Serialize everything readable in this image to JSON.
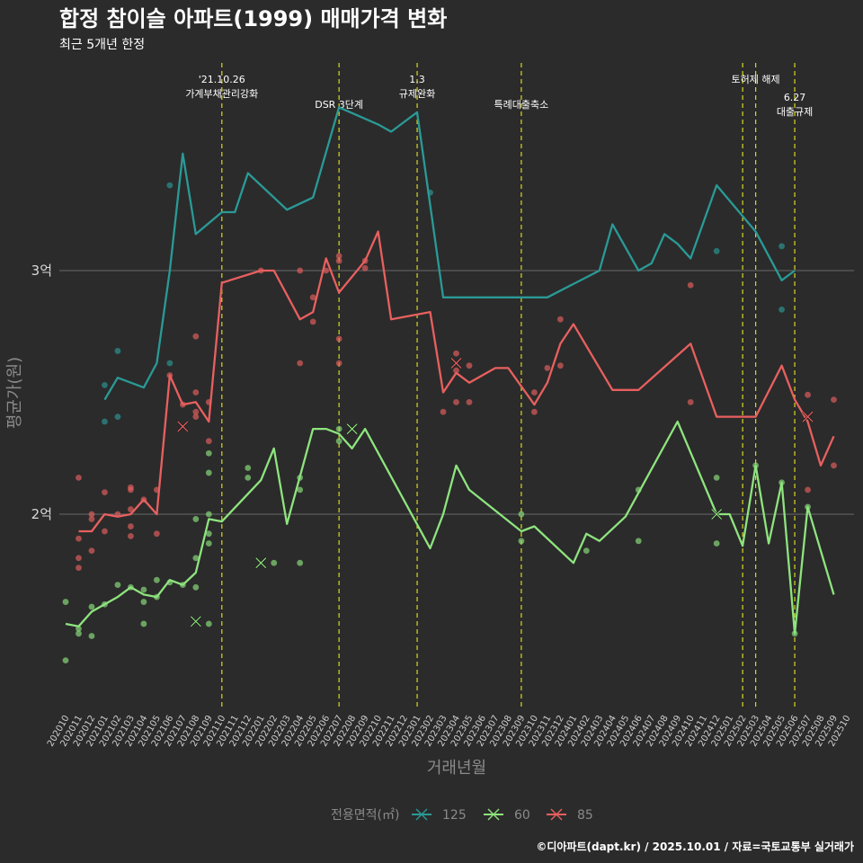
{
  "chart_data": {
    "type": "line",
    "title": "합정 참이슬 아파트(1999) 매매가격 변화",
    "subtitle": "최근 5개년 한정",
    "xlabel": "거래년월",
    "ylabel": "평균가(원)",
    "caption": "©디아파트(dapt.kr) / 2025.10.01 / 자료=국토교통부 실거래가",
    "legend_title": "전용면적(㎡)",
    "legend_position": "bottom",
    "y_ticks": [
      {
        "value": 20000,
        "label": "2억"
      },
      {
        "value": 30000,
        "label": "3억"
      }
    ],
    "ylim": [
      12000,
      38000
    ],
    "categories": [
      "202010",
      "202011",
      "202012",
      "202101",
      "202102",
      "202103",
      "202104",
      "202105",
      "202106",
      "202107",
      "202108",
      "202109",
      "202110",
      "202111",
      "202112",
      "202201",
      "202202",
      "202203",
      "202204",
      "202205",
      "202206",
      "202207",
      "202208",
      "202209",
      "202210",
      "202211",
      "202212",
      "202301",
      "202302",
      "202303",
      "202304",
      "202305",
      "202306",
      "202307",
      "202308",
      "202309",
      "202310",
      "202311",
      "202312",
      "202401",
      "202402",
      "202403",
      "202404",
      "202405",
      "202406",
      "202407",
      "202408",
      "202409",
      "202410",
      "202411",
      "202412",
      "202501",
      "202502",
      "202503",
      "202504",
      "202505",
      "202506",
      "202507",
      "202508",
      "202509",
      "202510"
    ],
    "events": [
      {
        "month": "202110",
        "lines": [
          "'21.10.26",
          "가계부채관리강화"
        ],
        "level": 1
      },
      {
        "month": "202207",
        "lines": [
          "DSR 3단계"
        ],
        "level": 2
      },
      {
        "month": "202301",
        "lines": [
          "1.3",
          "규제완화"
        ],
        "level": 1
      },
      {
        "month": "202309",
        "lines": [
          "특례대출축소"
        ],
        "level": 2
      },
      {
        "month": "202502",
        "lines": [],
        "level": 0
      },
      {
        "month": "202503",
        "lines": [
          "토허제 해제"
        ],
        "level": 1
      },
      {
        "month": "202506",
        "lines": [
          "6.27",
          "대출규제"
        ],
        "level": 3
      }
    ],
    "series": [
      {
        "name": "125",
        "color": "#2a9a96",
        "line": [
          [
            "202101",
            24700
          ],
          [
            "202102",
            25600
          ],
          [
            "202104",
            25200
          ],
          [
            "202105",
            26200
          ],
          [
            "202106",
            30000
          ],
          [
            "202107",
            34800
          ],
          [
            "202108",
            31500
          ],
          [
            "202110",
            32400
          ],
          [
            "202111",
            32400
          ],
          [
            "202112",
            34000
          ],
          [
            "202203",
            32500
          ],
          [
            "202205",
            33000
          ],
          [
            "202207",
            36700
          ],
          [
            "202210",
            36000
          ],
          [
            "202211",
            35700
          ],
          [
            "202301",
            36500
          ],
          [
            "202303",
            28900
          ],
          [
            "202311",
            28900
          ],
          [
            "202403",
            30000
          ],
          [
            "202404",
            31900
          ],
          [
            "202406",
            30000
          ],
          [
            "202407",
            30300
          ],
          [
            "202408",
            31500
          ],
          [
            "202409",
            31100
          ],
          [
            "202410",
            30500
          ],
          [
            "202412",
            33500
          ],
          [
            "202503",
            31600
          ],
          [
            "202505",
            29600
          ],
          [
            "202506",
            30000
          ]
        ],
        "points": [
          [
            "202101",
            25300
          ],
          [
            "202101",
            23800
          ],
          [
            "202102",
            26700
          ],
          [
            "202102",
            24000
          ],
          [
            "202106",
            33500
          ],
          [
            "202106",
            26200
          ],
          [
            "202412",
            30800
          ],
          [
            "202505",
            31000
          ],
          [
            "202505",
            28400
          ],
          [
            "202302",
            33200
          ]
        ],
        "crosses": []
      },
      {
        "name": "60",
        "color": "#8ee47e",
        "line": [
          [
            "202010",
            15500
          ],
          [
            "202011",
            15400
          ],
          [
            "202012",
            16000
          ],
          [
            "202102",
            16600
          ],
          [
            "202103",
            17000
          ],
          [
            "202104",
            16700
          ],
          [
            "202105",
            16600
          ],
          [
            "202106",
            17300
          ],
          [
            "202107",
            17100
          ],
          [
            "202108",
            17600
          ],
          [
            "202109",
            19800
          ],
          [
            "202110",
            19700
          ],
          [
            "202201",
            21400
          ],
          [
            "202202",
            22700
          ],
          [
            "202203",
            19600
          ],
          [
            "202205",
            23500
          ],
          [
            "202206",
            23500
          ],
          [
            "202207",
            23300
          ],
          [
            "202208",
            22700
          ],
          [
            "202209",
            23500
          ],
          [
            "202302",
            18600
          ],
          [
            "202303",
            20000
          ],
          [
            "202304",
            22000
          ],
          [
            "202305",
            21000
          ],
          [
            "202309",
            19300
          ],
          [
            "202310",
            19500
          ],
          [
            "202401",
            18000
          ],
          [
            "202402",
            19200
          ],
          [
            "202403",
            18900
          ],
          [
            "202405",
            19900
          ],
          [
            "202409",
            23800
          ],
          [
            "202412",
            20000
          ],
          [
            "202501",
            20000
          ],
          [
            "202502",
            18700
          ],
          [
            "202503",
            22000
          ],
          [
            "202504",
            18800
          ],
          [
            "202505",
            21300
          ],
          [
            "202506",
            15100
          ],
          [
            "202507",
            20300
          ],
          [
            "202509",
            16700
          ]
        ],
        "points": [
          [
            "202010",
            14000
          ],
          [
            "202010",
            16400
          ],
          [
            "202011",
            15100
          ],
          [
            "202011",
            15300
          ],
          [
            "202012",
            16200
          ],
          [
            "202012",
            15000
          ],
          [
            "202101",
            16300
          ],
          [
            "202102",
            17100
          ],
          [
            "202103",
            17000
          ],
          [
            "202104",
            16400
          ],
          [
            "202104",
            16900
          ],
          [
            "202104",
            15500
          ],
          [
            "202105",
            16600
          ],
          [
            "202105",
            17300
          ],
          [
            "202106",
            17200
          ],
          [
            "202107",
            17100
          ],
          [
            "202108",
            17000
          ],
          [
            "202108",
            18200
          ],
          [
            "202108",
            19800
          ],
          [
            "202109",
            15500
          ],
          [
            "202109",
            19200
          ],
          [
            "202109",
            20000
          ],
          [
            "202109",
            21700
          ],
          [
            "202109",
            22500
          ],
          [
            "202109",
            18800
          ],
          [
            "202112",
            21900
          ],
          [
            "202112",
            21500
          ],
          [
            "202202",
            18000
          ],
          [
            "202204",
            21000
          ],
          [
            "202204",
            21500
          ],
          [
            "202204",
            18000
          ],
          [
            "202207",
            23000
          ],
          [
            "202207",
            23500
          ],
          [
            "202309",
            20000
          ],
          [
            "202309",
            18900
          ],
          [
            "202402",
            18500
          ],
          [
            "202406",
            21000
          ],
          [
            "202406",
            18900
          ],
          [
            "202412",
            21500
          ],
          [
            "202412",
            18800
          ],
          [
            "202503",
            22000
          ],
          [
            "202505",
            21300
          ],
          [
            "202506",
            15100
          ],
          [
            "202507",
            20300
          ]
        ],
        "crosses": [
          [
            "202108",
            15600
          ],
          [
            "202201",
            18000
          ],
          [
            "202208",
            23500
          ],
          [
            "202412",
            20000
          ]
        ]
      },
      {
        "name": "85",
        "color": "#e8605f",
        "line": [
          [
            "202011",
            19300
          ],
          [
            "202012",
            19300
          ],
          [
            "202101",
            20000
          ],
          [
            "202102",
            19900
          ],
          [
            "202103",
            20000
          ],
          [
            "202104",
            20600
          ],
          [
            "202105",
            20000
          ],
          [
            "202106",
            25700
          ],
          [
            "202107",
            24500
          ],
          [
            "202108",
            24600
          ],
          [
            "202109",
            23800
          ],
          [
            "202110",
            29500
          ],
          [
            "202201",
            30000
          ],
          [
            "202202",
            30000
          ],
          [
            "202204",
            28000
          ],
          [
            "202205",
            28300
          ],
          [
            "202206",
            30500
          ],
          [
            "202207",
            29100
          ],
          [
            "202209",
            30400
          ],
          [
            "202210",
            31600
          ],
          [
            "202211",
            28000
          ],
          [
            "202302",
            28300
          ],
          [
            "202303",
            25000
          ],
          [
            "202304",
            25800
          ],
          [
            "202305",
            25400
          ],
          [
            "202307",
            26000
          ],
          [
            "202308",
            26000
          ],
          [
            "202310",
            24500
          ],
          [
            "202311",
            25400
          ],
          [
            "202312",
            27000
          ],
          [
            "202401",
            27800
          ],
          [
            "202404",
            25100
          ],
          [
            "202406",
            25100
          ],
          [
            "202410",
            27000
          ],
          [
            "202412",
            24000
          ],
          [
            "202502",
            24000
          ],
          [
            "202503",
            24000
          ],
          [
            "202505",
            26100
          ],
          [
            "202506",
            24700
          ],
          [
            "202507",
            23800
          ],
          [
            "202508",
            22000
          ],
          [
            "202509",
            23200
          ]
        ],
        "points": [
          [
            "202011",
            21500
          ],
          [
            "202011",
            19000
          ],
          [
            "202011",
            18200
          ],
          [
            "202011",
            17800
          ],
          [
            "202012",
            19800
          ],
          [
            "202012",
            18500
          ],
          [
            "202012",
            20000
          ],
          [
            "202101",
            19300
          ],
          [
            "202101",
            20900
          ],
          [
            "202102",
            20000
          ],
          [
            "202103",
            21100
          ],
          [
            "202103",
            20200
          ],
          [
            "202103",
            19500
          ],
          [
            "202103",
            19100
          ],
          [
            "202103",
            21000
          ],
          [
            "202104",
            20600
          ],
          [
            "202105",
            21000
          ],
          [
            "202105",
            19200
          ],
          [
            "202106",
            25700
          ],
          [
            "202107",
            24500
          ],
          [
            "202108",
            27300
          ],
          [
            "202108",
            25000
          ],
          [
            "202108",
            24200
          ],
          [
            "202108",
            24000
          ],
          [
            "202109",
            24600
          ],
          [
            "202109",
            23000
          ],
          [
            "202201",
            30000
          ],
          [
            "202204",
            30000
          ],
          [
            "202204",
            26200
          ],
          [
            "202205",
            28900
          ],
          [
            "202205",
            27900
          ],
          [
            "202206",
            30000
          ],
          [
            "202207",
            30600
          ],
          [
            "202207",
            30400
          ],
          [
            "202207",
            27200
          ],
          [
            "202207",
            26200
          ],
          [
            "202209",
            30400
          ],
          [
            "202209",
            30100
          ],
          [
            "202303",
            24200
          ],
          [
            "202304",
            26600
          ],
          [
            "202304",
            25900
          ],
          [
            "202304",
            24600
          ],
          [
            "202305",
            26100
          ],
          [
            "202305",
            24600
          ],
          [
            "202310",
            25000
          ],
          [
            "202310",
            24200
          ],
          [
            "202311",
            26000
          ],
          [
            "202312",
            28000
          ],
          [
            "202312",
            26100
          ],
          [
            "202410",
            24600
          ],
          [
            "202410",
            29400
          ],
          [
            "202507",
            24900
          ],
          [
            "202507",
            21000
          ],
          [
            "202509",
            24700
          ],
          [
            "202509",
            22000
          ]
        ],
        "crosses": [
          [
            "202107",
            23600
          ],
          [
            "202304",
            26200
          ],
          [
            "202507",
            24000
          ]
        ]
      }
    ]
  }
}
